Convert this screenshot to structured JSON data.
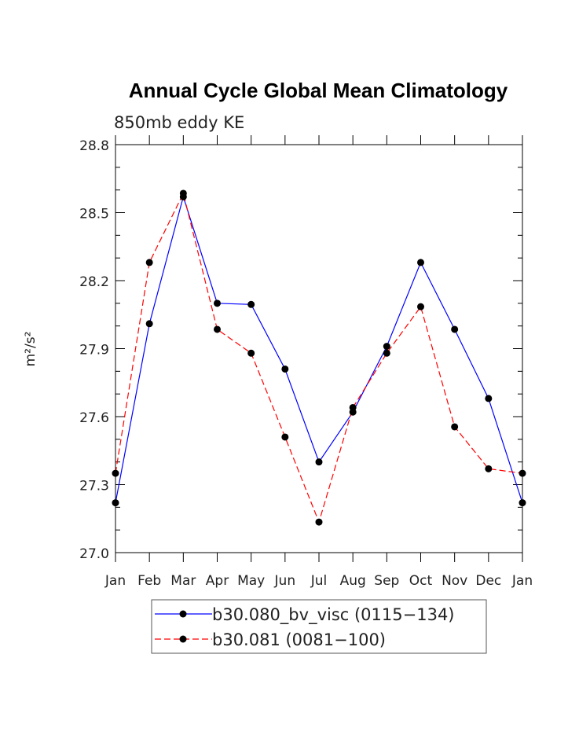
{
  "chart_data": {
    "type": "line",
    "title": "Annual Cycle Global Mean Climatology",
    "subtitle": "850mb eddy KE",
    "ylabel": "m²/s²",
    "xlabel": "",
    "categories": [
      "Jan",
      "Feb",
      "Mar",
      "Apr",
      "May",
      "Jun",
      "Jul",
      "Aug",
      "Sep",
      "Oct",
      "Nov",
      "Dec",
      "Jan"
    ],
    "ylim": [
      27.0,
      28.8
    ],
    "yticks": [
      "27.0",
      "27.3",
      "27.6",
      "27.9",
      "28.2",
      "28.5",
      "28.8"
    ],
    "series": [
      {
        "name": "b30.080_bv_visc (0115−134)",
        "color": "#0000ff",
        "style": "solid",
        "values": [
          27.22,
          28.01,
          28.57,
          28.1,
          28.095,
          27.81,
          27.4,
          27.62,
          27.91,
          28.28,
          27.985,
          27.68,
          27.22
        ]
      },
      {
        "name": "b30.081 (0081−100)",
        "color": "#ff0000",
        "style": "dashed",
        "values": [
          27.35,
          28.28,
          28.585,
          27.985,
          27.88,
          27.51,
          27.135,
          27.64,
          27.88,
          28.085,
          27.555,
          27.37,
          27.35
        ]
      }
    ],
    "legend_position": "bottom"
  }
}
